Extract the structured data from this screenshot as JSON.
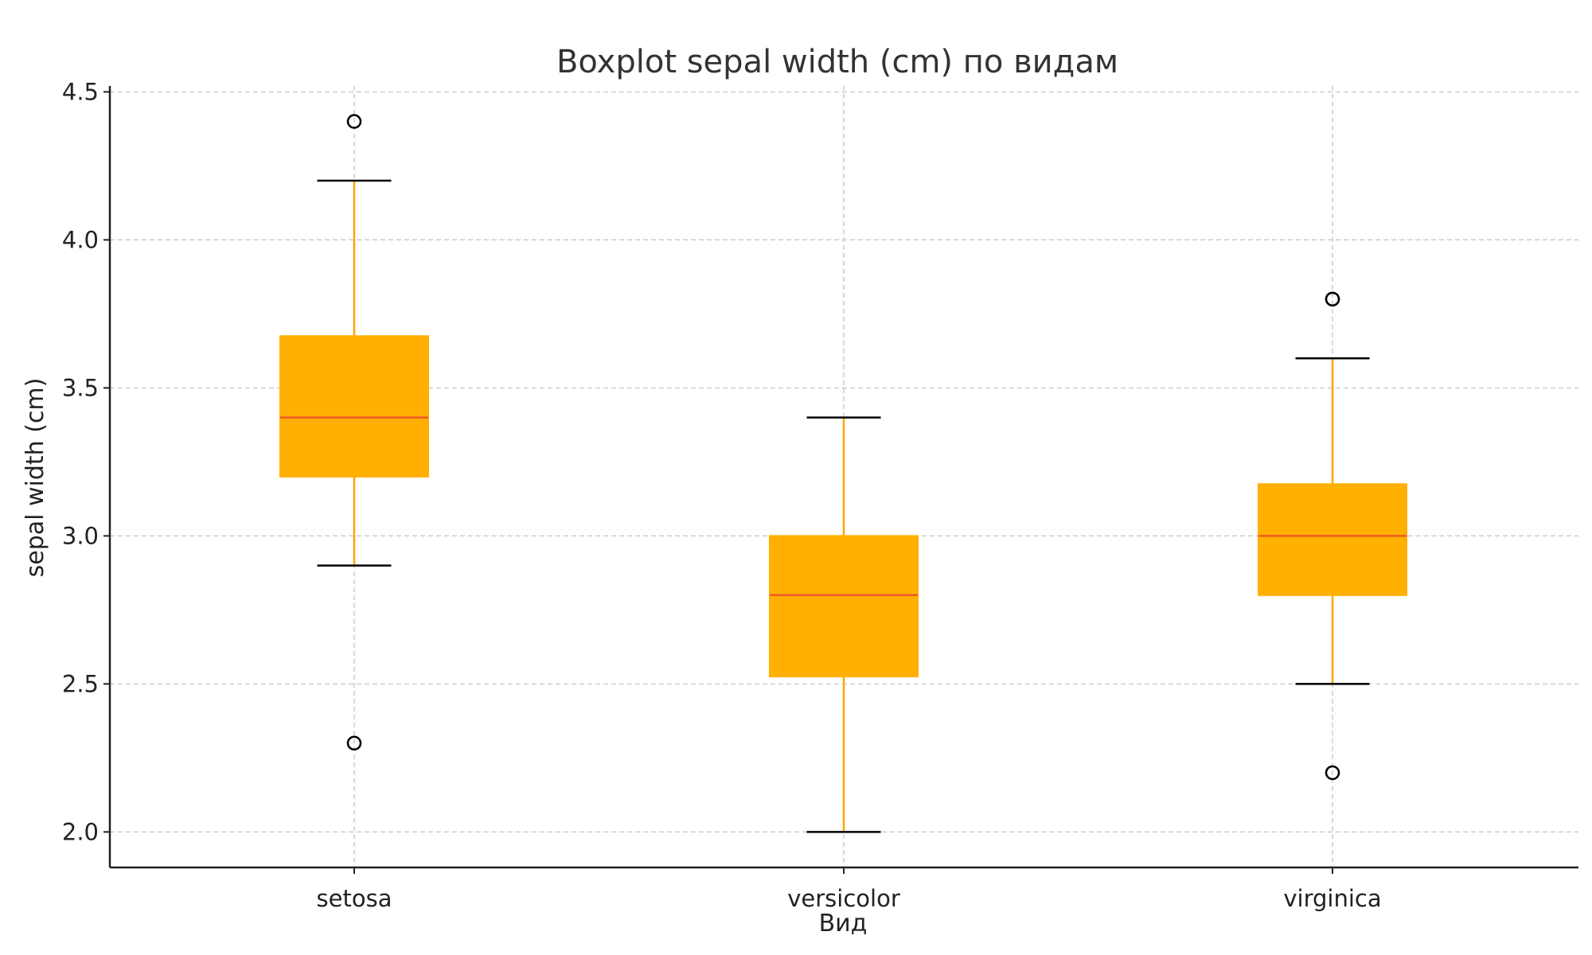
{
  "chart_data": {
    "type": "boxplot",
    "title": "Boxplot sepal width (cm) по видам",
    "xlabel": "Вид",
    "ylabel": "sepal width (cm)",
    "categories": [
      "setosa",
      "versicolor",
      "virginica"
    ],
    "ylim": [
      1.88,
      4.52
    ],
    "yticks": [
      2.0,
      2.5,
      3.0,
      3.5,
      4.0,
      4.5
    ],
    "ytick_labels": [
      "2.0",
      "2.5",
      "3.0",
      "3.5",
      "4.0",
      "4.5"
    ],
    "grid": true,
    "series": [
      {
        "category": "setosa",
        "whisker_low": 2.9,
        "q1": 3.2,
        "median": 3.4,
        "q3": 3.675,
        "whisker_high": 4.2,
        "outliers": [
          4.4,
          2.3
        ]
      },
      {
        "category": "versicolor",
        "whisker_low": 2.0,
        "q1": 2.525,
        "median": 2.8,
        "q3": 3.0,
        "whisker_high": 3.4,
        "outliers": []
      },
      {
        "category": "virginica",
        "whisker_low": 2.5,
        "q1": 2.8,
        "median": 3.0,
        "q3": 3.175,
        "whisker_high": 3.6,
        "outliers": [
          3.8,
          3.8,
          2.2
        ]
      }
    ],
    "colors": {
      "box_fill": "#FFB000",
      "whisker": "#FFA500",
      "median": "#F05A28",
      "caps": "#000000",
      "outlier": "#000000",
      "grid": "#cccccc",
      "axis": "#222222"
    }
  }
}
